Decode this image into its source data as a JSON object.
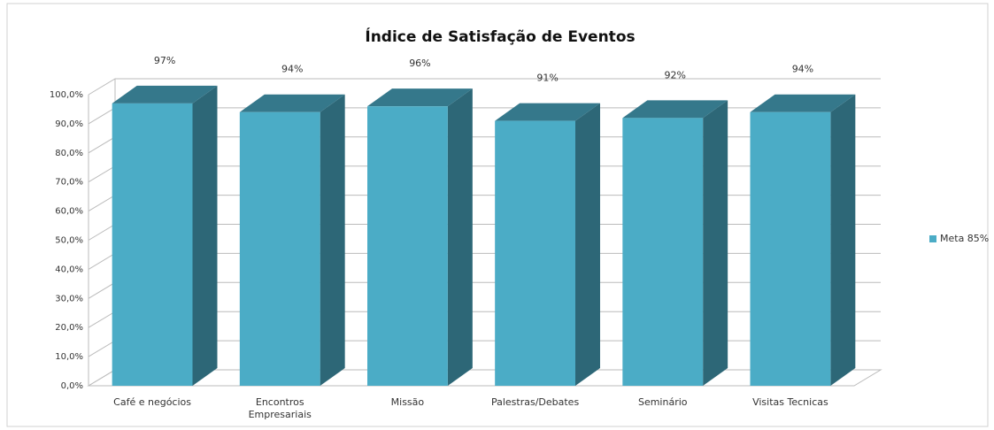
{
  "chart_data": {
    "type": "bar3d",
    "title": "Índice de Satisfação de Eventos",
    "categories": [
      "Café e negócios",
      "Encontros Empresariais",
      "Missão",
      "Palestras/Debates",
      "Seminário",
      "Visitas Tecnicas"
    ],
    "series": [
      {
        "name": "Meta 85%",
        "color": "#4bacc6",
        "values": [
          97,
          94,
          96,
          91,
          92,
          94
        ],
        "value_labels": [
          "97%",
          "94%",
          "96%",
          "91%",
          "92%",
          "94%"
        ]
      }
    ],
    "ylim": [
      0,
      100
    ],
    "yticks": [
      {
        "value": 0,
        "label": "0,0%"
      },
      {
        "value": 10,
        "label": "10,0%"
      },
      {
        "value": 20,
        "label": "20,0%"
      },
      {
        "value": 30,
        "label": "30,0%"
      },
      {
        "value": 40,
        "label": "40,0%"
      },
      {
        "value": 50,
        "label": "50,0%"
      },
      {
        "value": 60,
        "label": "60,0%"
      },
      {
        "value": 70,
        "label": "70,0%"
      },
      {
        "value": 80,
        "label": "80,0%"
      },
      {
        "value": 90,
        "label": "90,0%"
      },
      {
        "value": 100,
        "label": "100,0%"
      }
    ],
    "grid": true,
    "legend": "right"
  }
}
